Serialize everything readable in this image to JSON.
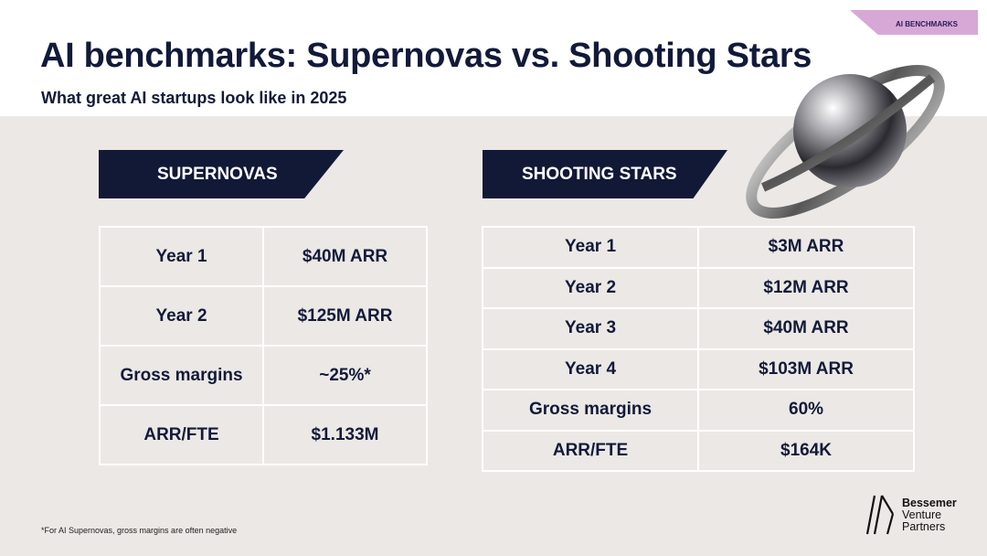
{
  "tag": "AI BENCHMARKS",
  "title": "AI benchmarks: Supernovas vs. Shooting Stars",
  "subtitle": "What great AI startups look like in 2025",
  "supernovas": {
    "heading": "SUPERNOVAS",
    "rows": [
      [
        "Year 1",
        "$40M ARR"
      ],
      [
        "Year 2",
        "$125M ARR"
      ],
      [
        "Gross margins",
        "~25%*"
      ],
      [
        "ARR/FTE",
        "$1.133M"
      ]
    ]
  },
  "shooting_stars": {
    "heading": "SHOOTING STARS",
    "rows": [
      [
        "Year 1",
        "$3M ARR"
      ],
      [
        "Year 2",
        "$12M ARR"
      ],
      [
        "Year 3",
        "$40M ARR"
      ],
      [
        "Year 4",
        "$103M ARR"
      ],
      [
        "Gross margins",
        "60%"
      ],
      [
        "ARR/FTE",
        "$164K"
      ]
    ]
  },
  "footnote": "*For AI Supernovas, gross margins are often negative",
  "logo": {
    "line1": "Bessemer",
    "line2": "Venture",
    "line3": "Partners"
  },
  "colors": {
    "navy": "#111936",
    "tag": "#d7a8d6",
    "background": "#ece8e5"
  }
}
